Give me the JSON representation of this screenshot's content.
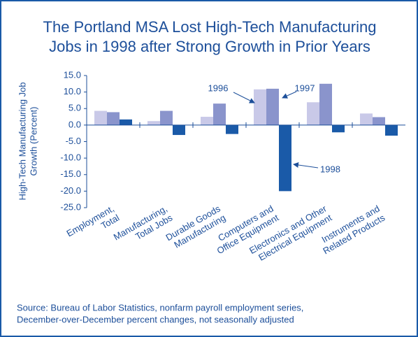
{
  "chart_data": {
    "type": "bar",
    "title": [
      "The Portland MSA Lost High-Tech Manufacturing",
      "Jobs in 1998 after Strong Growth in Prior Years"
    ],
    "ylabel": [
      "High-Tech Manufacturing Job",
      "Growth (Percent)"
    ],
    "categories": [
      [
        "Employment,",
        "Total"
      ],
      [
        "Manufacturing,",
        "Total Jobs"
      ],
      [
        "Durable Goods",
        "Manufacturing"
      ],
      [
        "Computers and",
        "Office Equipment"
      ],
      [
        "Electronics and Other",
        "Electrical Equipment"
      ],
      [
        "Instruments and",
        "Related Products"
      ]
    ],
    "series": [
      {
        "name": "1996",
        "color": "#c9c9e8",
        "values": [
          4.3,
          1.2,
          2.5,
          10.8,
          6.9,
          3.5
        ]
      },
      {
        "name": "1997",
        "color": "#8a94cc",
        "values": [
          3.9,
          4.3,
          6.5,
          11.0,
          12.5,
          2.4
        ]
      },
      {
        "name": "1998",
        "color": "#1a5aa8",
        "values": [
          1.7,
          -3.0,
          -2.7,
          -20.0,
          -2.2,
          -3.2
        ]
      }
    ],
    "ylim": [
      -25,
      15
    ],
    "yticks": [
      {
        "value": 15,
        "label": "15.0"
      },
      {
        "value": 10,
        "label": "10.0"
      },
      {
        "value": 5,
        "label": "5.0"
      },
      {
        "value": 0,
        "label": "0.0"
      },
      {
        "value": -5,
        "label": "-5.0"
      },
      {
        "value": -10,
        "label": "-10.0"
      },
      {
        "value": -15,
        "label": "-15.0"
      },
      {
        "value": -20,
        "label": "-20.0"
      },
      {
        "value": -25,
        "label": "-25.0"
      }
    ],
    "source": [
      "Source: Bureau of Labor Statistics, nonfarm payroll employment series,",
      "December-over-December percent changes, not seasonally adjusted"
    ]
  }
}
